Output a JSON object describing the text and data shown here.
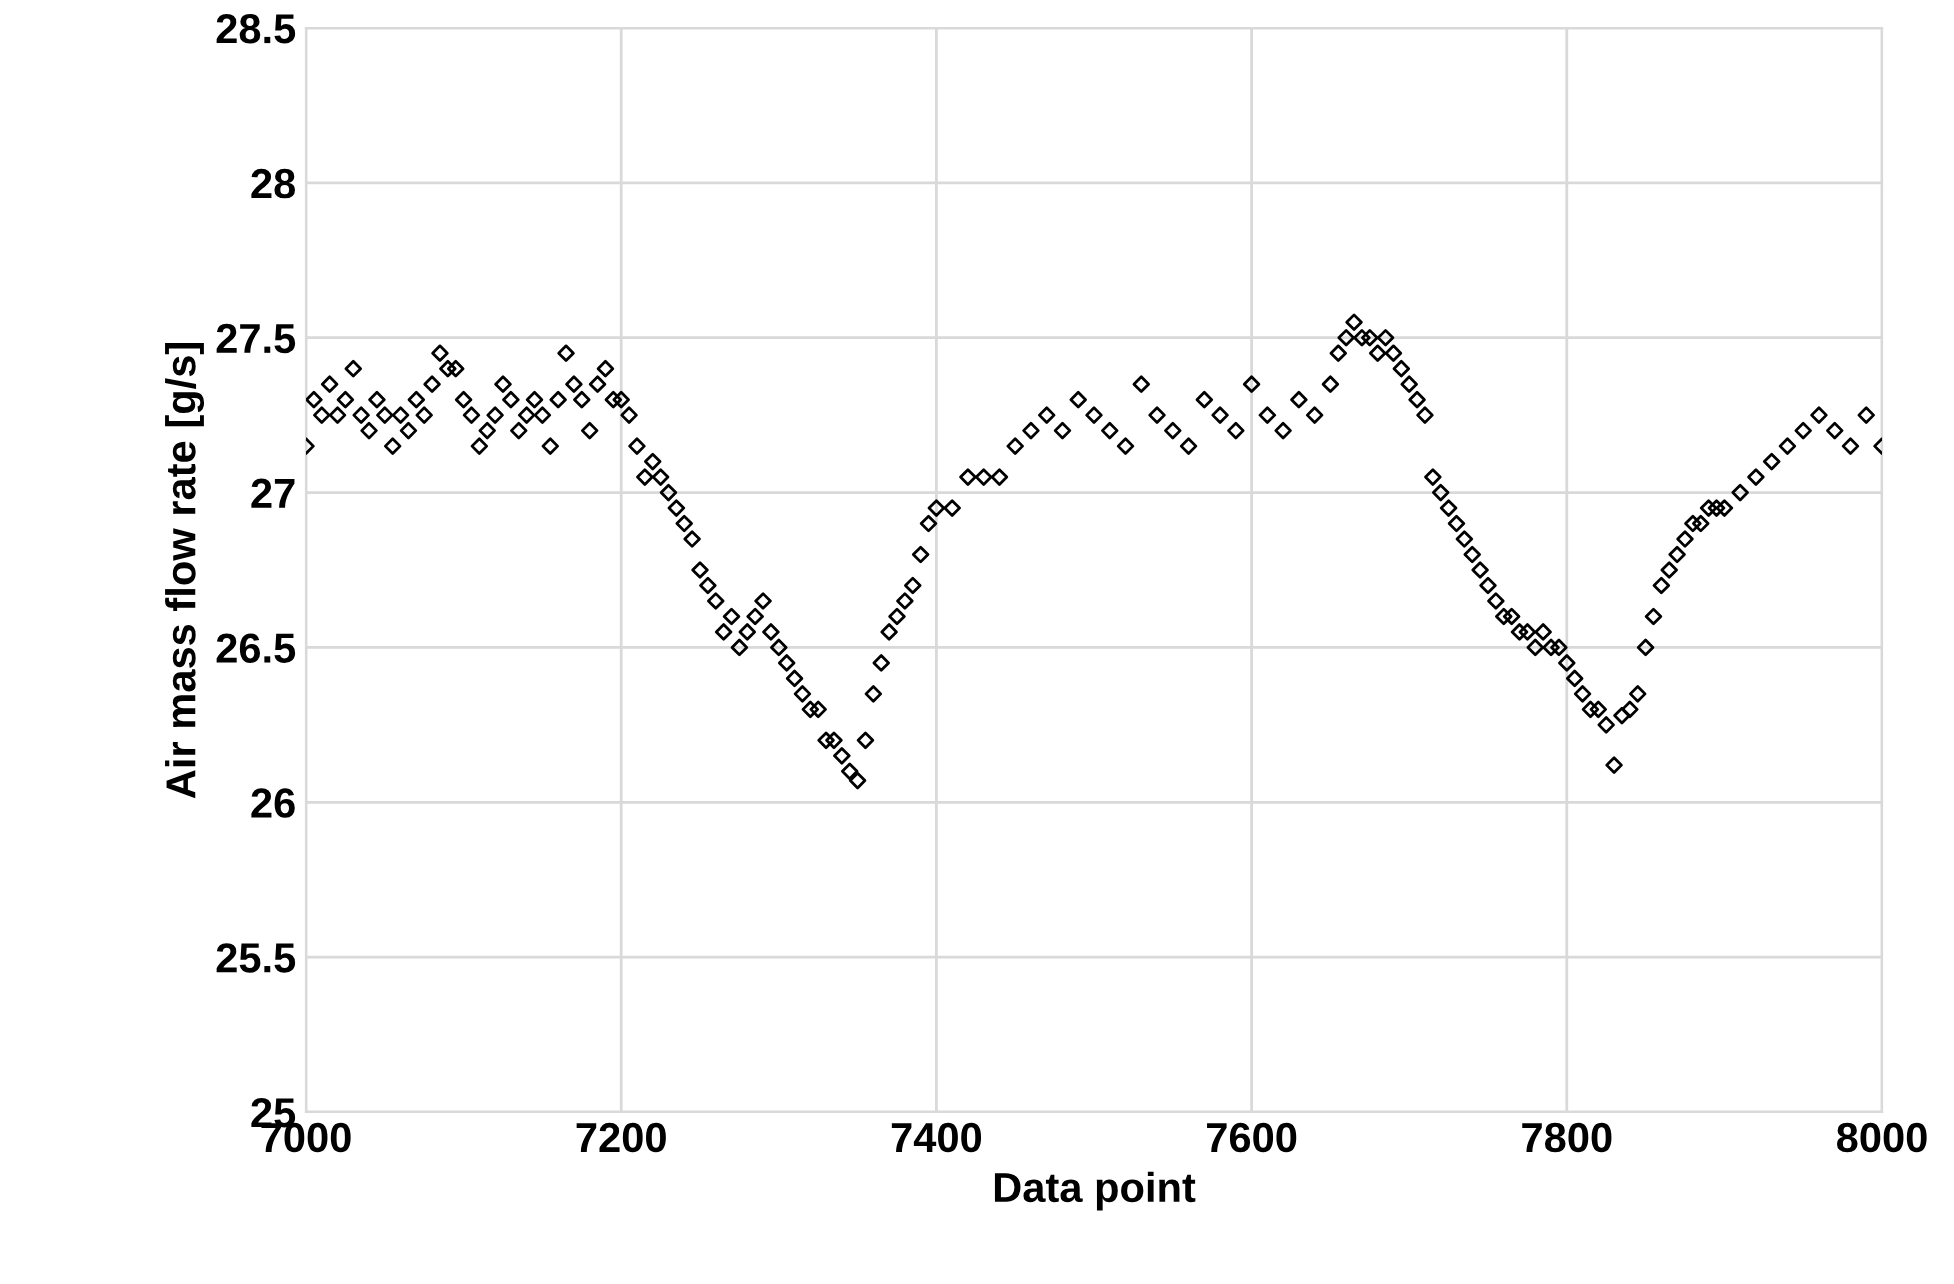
{
  "chart_data": {
    "type": "scatter",
    "xlabel": "Data point",
    "ylabel": "Air mass flow rate [g/s]",
    "xlim": [
      7000,
      8000
    ],
    "ylim": [
      25,
      28.5
    ],
    "xticks": [
      7000,
      7200,
      7400,
      7600,
      7800,
      8000
    ],
    "yticks": [
      25,
      25.5,
      26,
      26.5,
      27,
      27.5,
      28,
      28.5
    ],
    "grid": true,
    "marker": "diamond",
    "legend": false,
    "series": [
      {
        "color": "#000000",
        "x": [
          7000,
          7005,
          7010,
          7015,
          7020,
          7025,
          7030,
          7035,
          7040,
          7045,
          7050,
          7055,
          7060,
          7065,
          7070,
          7075,
          7080,
          7085,
          7090,
          7095,
          7100,
          7105,
          7110,
          7115,
          7120,
          7125,
          7130,
          7135,
          7140,
          7145,
          7150,
          7155,
          7160,
          7165,
          7170,
          7175,
          7180,
          7185,
          7190,
          7195,
          7200,
          7205,
          7210,
          7215,
          7220,
          7225,
          7230,
          7235,
          7240,
          7245,
          7250,
          7255,
          7260,
          7265,
          7270,
          7275,
          7280,
          7285,
          7290,
          7295,
          7300,
          7305,
          7310,
          7315,
          7320,
          7325,
          7330,
          7335,
          7340,
          7345,
          7350,
          7355,
          7360,
          7365,
          7370,
          7375,
          7380,
          7385,
          7390,
          7395,
          7400,
          7410,
          7420,
          7430,
          7440,
          7450,
          7460,
          7470,
          7480,
          7490,
          7500,
          7510,
          7520,
          7530,
          7540,
          7550,
          7560,
          7570,
          7580,
          7590,
          7600,
          7610,
          7620,
          7630,
          7640,
          7650,
          7655,
          7660,
          7665,
          7670,
          7675,
          7680,
          7685,
          7690,
          7695,
          7700,
          7705,
          7710,
          7715,
          7720,
          7725,
          7730,
          7735,
          7740,
          7745,
          7750,
          7755,
          7760,
          7765,
          7770,
          7775,
          7780,
          7785,
          7790,
          7795,
          7800,
          7805,
          7810,
          7815,
          7820,
          7825,
          7830,
          7835,
          7840,
          7845,
          7850,
          7855,
          7860,
          7865,
          7870,
          7875,
          7880,
          7885,
          7890,
          7895,
          7900,
          7910,
          7920,
          7930,
          7940,
          7950,
          7960,
          7970,
          7980,
          7990,
          8000
        ],
        "values": [
          27.15,
          27.3,
          27.25,
          27.35,
          27.25,
          27.3,
          27.4,
          27.25,
          27.2,
          27.3,
          27.25,
          27.15,
          27.25,
          27.2,
          27.3,
          27.25,
          27.35,
          27.45,
          27.4,
          27.4,
          27.3,
          27.25,
          27.15,
          27.2,
          27.25,
          27.35,
          27.3,
          27.2,
          27.25,
          27.3,
          27.25,
          27.15,
          27.3,
          27.45,
          27.35,
          27.3,
          27.2,
          27.35,
          27.4,
          27.3,
          27.3,
          27.25,
          27.15,
          27.05,
          27.1,
          27.05,
          27.0,
          26.95,
          26.9,
          26.85,
          26.75,
          26.7,
          26.65,
          26.55,
          26.6,
          26.5,
          26.55,
          26.6,
          26.65,
          26.55,
          26.5,
          26.45,
          26.4,
          26.35,
          26.3,
          26.3,
          26.2,
          26.2,
          26.15,
          26.1,
          26.07,
          26.2,
          26.35,
          26.45,
          26.55,
          26.6,
          26.65,
          26.7,
          26.8,
          26.9,
          26.95,
          26.95,
          27.05,
          27.05,
          27.05,
          27.15,
          27.2,
          27.25,
          27.2,
          27.3,
          27.25,
          27.2,
          27.15,
          27.35,
          27.25,
          27.2,
          27.15,
          27.3,
          27.25,
          27.2,
          27.35,
          27.25,
          27.2,
          27.3,
          27.25,
          27.35,
          27.45,
          27.5,
          27.55,
          27.5,
          27.5,
          27.45,
          27.5,
          27.45,
          27.4,
          27.35,
          27.3,
          27.25,
          27.05,
          27.0,
          26.95,
          26.9,
          26.85,
          26.8,
          26.75,
          26.7,
          26.65,
          26.6,
          26.6,
          26.55,
          26.55,
          26.5,
          26.55,
          26.5,
          26.5,
          26.45,
          26.4,
          26.35,
          26.3,
          26.3,
          26.25,
          26.12,
          26.28,
          26.3,
          26.35,
          26.5,
          26.6,
          26.7,
          26.75,
          26.8,
          26.85,
          26.9,
          26.9,
          26.95,
          26.95,
          26.95,
          27.0,
          27.05,
          27.1,
          27.15,
          27.2,
          27.25,
          27.2,
          27.15,
          27.25,
          27.15
        ]
      }
    ]
  }
}
